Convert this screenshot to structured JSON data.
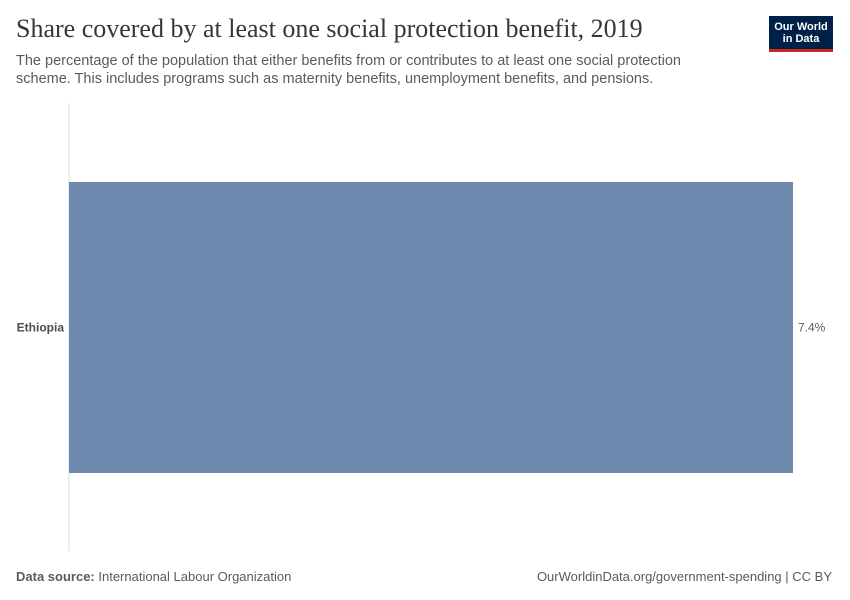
{
  "header": {
    "title": "Share covered by at least one social protection benefit, 2019",
    "subtitle": "The percentage of the population that either benefits from or contributes to at least one social protection scheme. This includes programs such as maternity benefits, unemployment benefits, and pensions.",
    "logo_line1": "Our World",
    "logo_line2": "in Data"
  },
  "chart_data": {
    "type": "bar",
    "orientation": "horizontal",
    "title": "Share covered by at least one social protection benefit, 2019",
    "categories": [
      "Ethiopia"
    ],
    "values": [
      7.4
    ],
    "value_labels": [
      "7.4%"
    ],
    "unit": "%",
    "xlim": [
      0,
      7.4
    ],
    "bar_color": "#6f88ae",
    "xlabel": "",
    "ylabel": "",
    "grid": false
  },
  "footer": {
    "source_label": "Data source:",
    "source_value": "International Labour Organization",
    "url_license": "OurWorldinData.org/government-spending | CC BY"
  }
}
